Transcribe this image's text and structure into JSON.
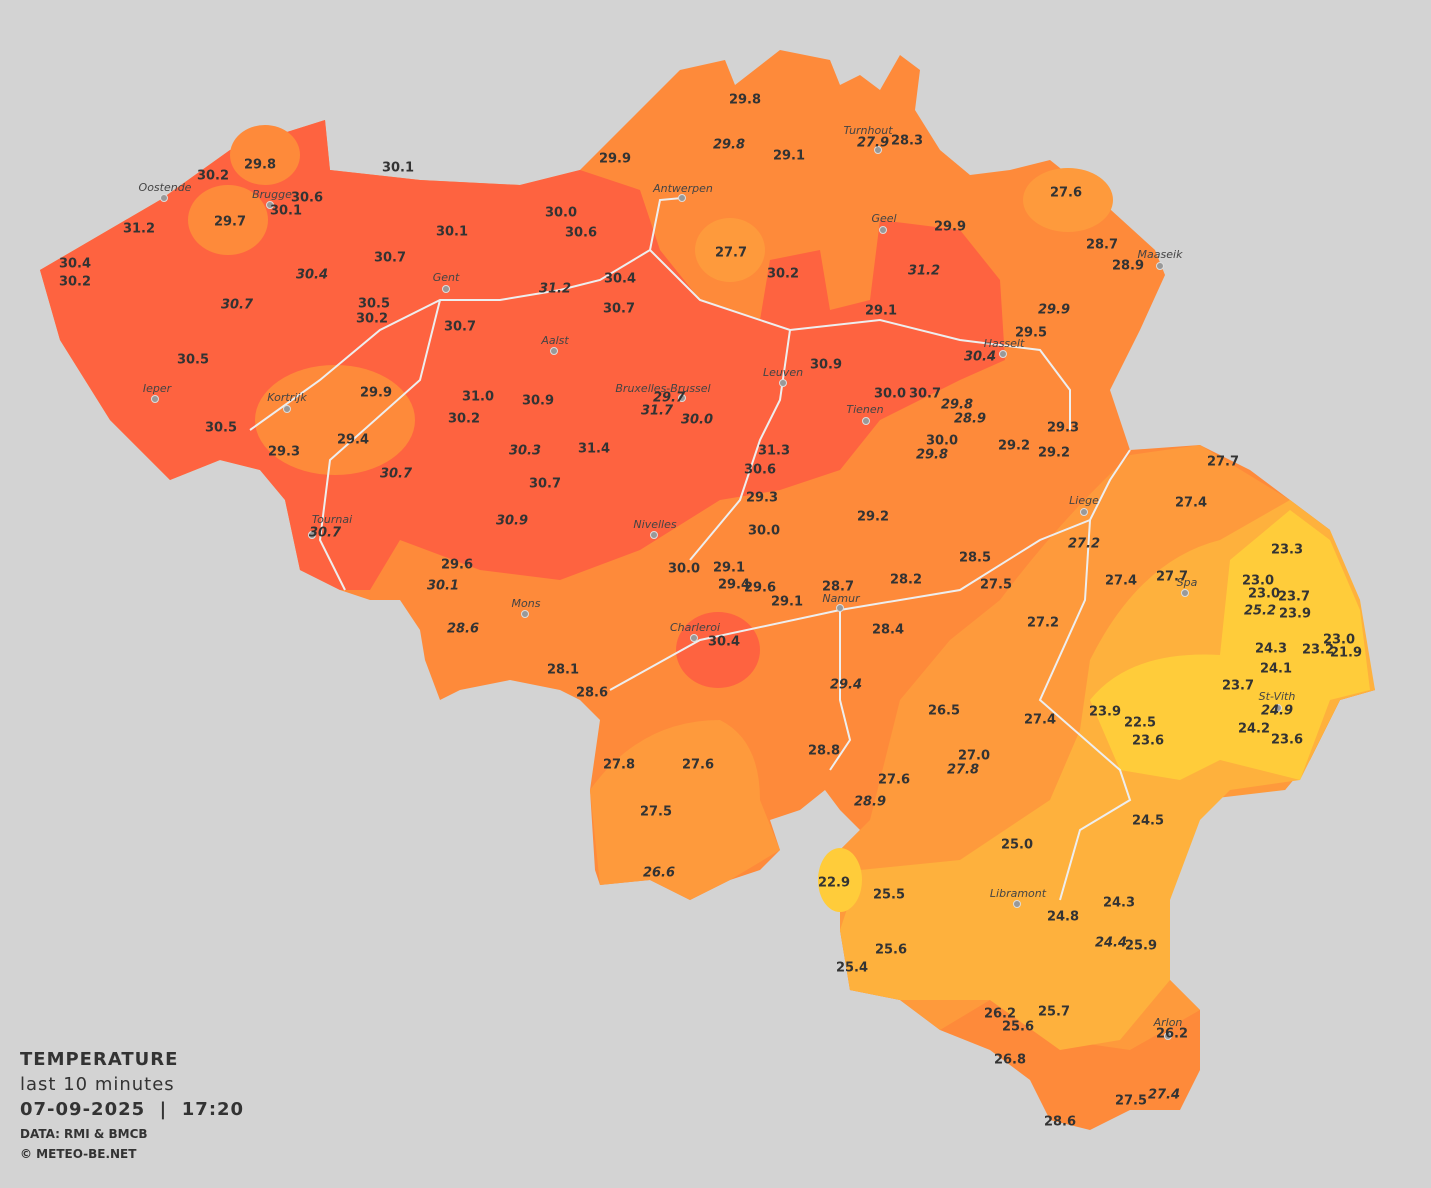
{
  "legend": {
    "title": "TEMPERATURE",
    "subtitle": "last 10 minutes",
    "datetime": "07-09-2025  |  17:20",
    "source": "DATA: RMI & BMCB",
    "credit": "© METEO-BE.NET"
  },
  "cities": [
    "Oostende",
    "Brugge",
    "Antwerpen",
    "Turnhout",
    "Geel",
    "Maaseik",
    "Gent",
    "Aalst",
    "Leuven",
    "Hasselt",
    "Bruxelles-Brussel",
    "Tienen",
    "Ieper",
    "Kortrijk",
    "Liege",
    "Tournai",
    "Nivelles",
    "Spa",
    "Mons",
    "Namur",
    "Charleroi",
    "St-Vith",
    "Libramont",
    "Arlon"
  ],
  "readings": [
    "29.8",
    "29.1",
    "28.3",
    "29.9",
    "30.1",
    "29.8",
    "30.2",
    "30.6",
    "30.1",
    "29.7",
    "31.2",
    "30.0",
    "30.6",
    "30.1",
    "27.6",
    "29.9",
    "27.7",
    "30.2",
    "28.7",
    "28.9",
    "30.4",
    "30.2",
    "30.7",
    "30.4",
    "30.7",
    "30.5",
    "30.2",
    "30.7",
    "29.1",
    "29.5",
    "30.5",
    "30.9",
    "29.9",
    "31.0",
    "30.9",
    "30.2",
    "30.0",
    "30.7",
    "30.0",
    "29.3",
    "29.2",
    "29.2",
    "30.5",
    "29.4",
    "29.3",
    "31.4",
    "31.3",
    "30.6",
    "30.7",
    "29.3",
    "29.2",
    "30.0",
    "27.7",
    "27.4",
    "23.3",
    "29.6",
    "30.0",
    "29.1",
    "29.4",
    "29.6",
    "29.1",
    "28.7",
    "28.2",
    "28.5",
    "27.5",
    "27.4",
    "27.7",
    "23.0",
    "23.0",
    "23.7",
    "23.9",
    "27.2",
    "28.4",
    "30.4",
    "23.0",
    "23.2",
    "21.9",
    "24.3",
    "24.1",
    "28.1",
    "28.6",
    "23.7",
    "26.5",
    "27.4",
    "23.9",
    "22.5",
    "23.6",
    "24.2",
    "23.6",
    "28.8",
    "27.0",
    "27.8",
    "27.6",
    "27.6",
    "27.5",
    "24.5",
    "25.0",
    "22.9",
    "25.5",
    "24.3",
    "24.8",
    "25.6",
    "25.9",
    "25.4",
    "25.7",
    "26.2",
    "25.6",
    "26.2",
    "26.8",
    "27.5",
    "28.6"
  ],
  "readings_italic": [
    "29.8",
    "27.9",
    "30.4",
    "31.2",
    "30.7",
    "31.2",
    "29.9",
    "30.4",
    "29.7",
    "31.7",
    "30.0",
    "29.8",
    "28.9",
    "30.3",
    "29.8",
    "30.7",
    "30.9",
    "30.7",
    "27.2",
    "25.2",
    "30.1",
    "28.6",
    "29.4",
    "24.9",
    "27.8",
    "28.9",
    "26.6",
    "24.4",
    "27.4"
  ]
}
